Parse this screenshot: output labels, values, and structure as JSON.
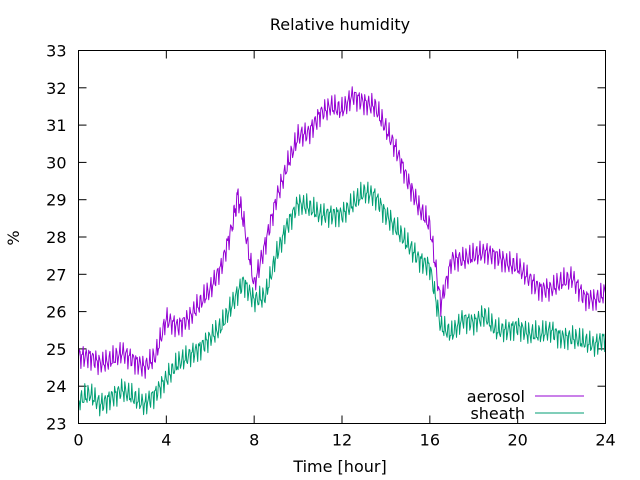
{
  "chart_data": {
    "type": "line",
    "title": "Relative humidity",
    "xlabel": "Time [hour]",
    "ylabel": "%",
    "xlim": [
      0,
      24
    ],
    "ylim": [
      23,
      33
    ],
    "xticks": [
      0,
      4,
      8,
      12,
      16,
      20,
      24
    ],
    "yticks": [
      23,
      24,
      25,
      26,
      27,
      28,
      29,
      30,
      31,
      32,
      33
    ],
    "grid": false,
    "legend": "bottom-right",
    "series": [
      {
        "name": "aerosol",
        "color": "#9400d3",
        "x": [
          0,
          0.5,
          1,
          1.5,
          2,
          2.5,
          3,
          3.5,
          4,
          4.5,
          5,
          5.5,
          6,
          6.5,
          7,
          7.25,
          7.5,
          8,
          8.5,
          9,
          9.5,
          10,
          10.5,
          11,
          11.5,
          12,
          12.5,
          13,
          13.5,
          14,
          14.5,
          15,
          15.5,
          16,
          16.5,
          17,
          17.5,
          18,
          18.5,
          19,
          19.5,
          20,
          20.5,
          21,
          21.5,
          22,
          22.5,
          23,
          23.5,
          24
        ],
        "y": [
          24.8,
          24.8,
          24.6,
          24.7,
          24.9,
          24.7,
          24.5,
          24.8,
          25.8,
          25.6,
          25.8,
          26.2,
          26.6,
          27.2,
          28.3,
          29.1,
          28.5,
          26.7,
          27.8,
          29.0,
          29.9,
          30.7,
          30.8,
          31.3,
          31.5,
          31.4,
          31.8,
          31.6,
          31.5,
          30.9,
          30.3,
          29.5,
          28.8,
          28.3,
          26.2,
          27.4,
          27.4,
          27.5,
          27.6,
          27.5,
          27.3,
          27.2,
          26.9,
          26.6,
          26.6,
          26.8,
          26.9,
          26.4,
          26.3,
          26.5
        ]
      },
      {
        "name": "sheath",
        "color": "#009e73",
        "x": [
          0,
          0.5,
          1,
          1.5,
          2,
          2.5,
          3,
          3.5,
          4,
          4.5,
          5,
          5.5,
          6,
          6.5,
          7,
          7.5,
          8,
          8.5,
          9,
          9.5,
          10,
          10.5,
          11,
          11.5,
          12,
          12.5,
          13,
          13.5,
          14,
          14.5,
          15,
          15.5,
          16,
          16.5,
          17,
          17.5,
          18,
          18.5,
          19,
          19.5,
          20,
          20.5,
          21,
          21.5,
          22,
          22.5,
          23,
          23.5,
          24
        ],
        "y": [
          23.6,
          23.8,
          23.5,
          23.7,
          23.9,
          23.7,
          23.5,
          23.8,
          24.2,
          24.6,
          24.8,
          25.0,
          25.3,
          25.6,
          26.2,
          26.8,
          26.3,
          26.4,
          27.5,
          28.3,
          28.9,
          28.8,
          28.6,
          28.6,
          28.6,
          28.9,
          29.2,
          29.1,
          28.6,
          28.2,
          27.8,
          27.4,
          27.2,
          25.6,
          25.4,
          25.8,
          25.7,
          25.9,
          25.5,
          25.5,
          25.6,
          25.4,
          25.4,
          25.5,
          25.3,
          25.3,
          25.2,
          25.1,
          25.3
        ]
      }
    ]
  }
}
